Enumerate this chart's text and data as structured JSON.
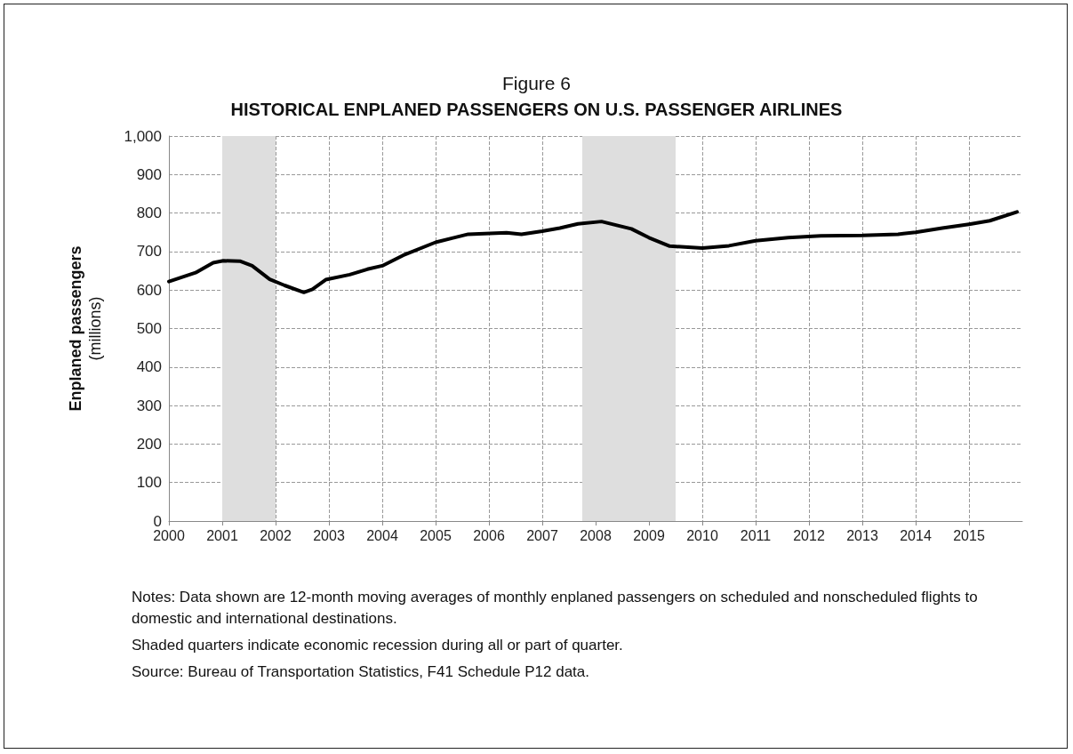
{
  "chart_data": {
    "type": "line",
    "title": "Figure 6",
    "subtitle": "HISTORICAL ENPLANED PASSENGERS ON U.S. PASSENGER AIRLINES",
    "ylabel": "Enplaned passengers\n(millions)",
    "series": [
      {
        "color": "#000000",
        "x": [
          2000.0,
          2000.5,
          2000.83,
          2001.02,
          2001.33,
          2001.56,
          2001.89,
          2002.17,
          2002.53,
          2002.69,
          2002.94,
          2003.39,
          2003.72,
          2004.0,
          2004.39,
          2005.0,
          2005.61,
          2006.33,
          2006.61,
          2007.0,
          2007.33,
          2007.67,
          2008.11,
          2008.67,
          2009.0,
          2009.39,
          2010.0,
          2010.5,
          2011.0,
          2011.61,
          2012.22,
          2013.0,
          2013.67,
          2014.0,
          2014.5,
          2015.0,
          2015.39,
          2015.9
        ],
        "values": [
          622,
          645,
          671,
          676,
          675,
          663,
          628,
          612,
          594,
          602,
          627,
          640,
          654,
          663,
          690,
          724,
          745,
          749,
          745,
          753,
          761,
          772,
          778,
          759,
          736,
          714,
          709,
          715,
          728,
          736,
          741,
          742,
          745,
          750,
          761,
          771,
          780,
          803
        ]
      }
    ],
    "xlim": [
      2000,
      2016
    ],
    "xticks": [
      2000,
      2001,
      2002,
      2003,
      2004,
      2005,
      2006,
      2007,
      2008,
      2009,
      2010,
      2011,
      2012,
      2013,
      2014,
      2015
    ],
    "ylim": [
      0,
      1000
    ],
    "yticks": [
      0,
      100,
      200,
      300,
      400,
      500,
      600,
      700,
      800,
      900,
      {
        "value": 1000,
        "label": "1,000"
      }
    ],
    "bands": [
      {
        "axis": "x",
        "from": 2001,
        "to": 2002,
        "color": "#dedede"
      },
      {
        "axis": "x",
        "from": 2007.75,
        "to": 2009.5,
        "color": "#dedede"
      }
    ],
    "grid": true,
    "marker": "none",
    "line_style": "solid",
    "annotations": [
      "Notes: Data shown are 12-month moving averages of monthly enplaned passengers on scheduled and nonscheduled flights to domestic and international destinations.",
      "Shaded quarters indicate economic recession during all or part of quarter.",
      "Source: Bureau of Transportation Statistics, F41 Schedule P12 data."
    ]
  }
}
